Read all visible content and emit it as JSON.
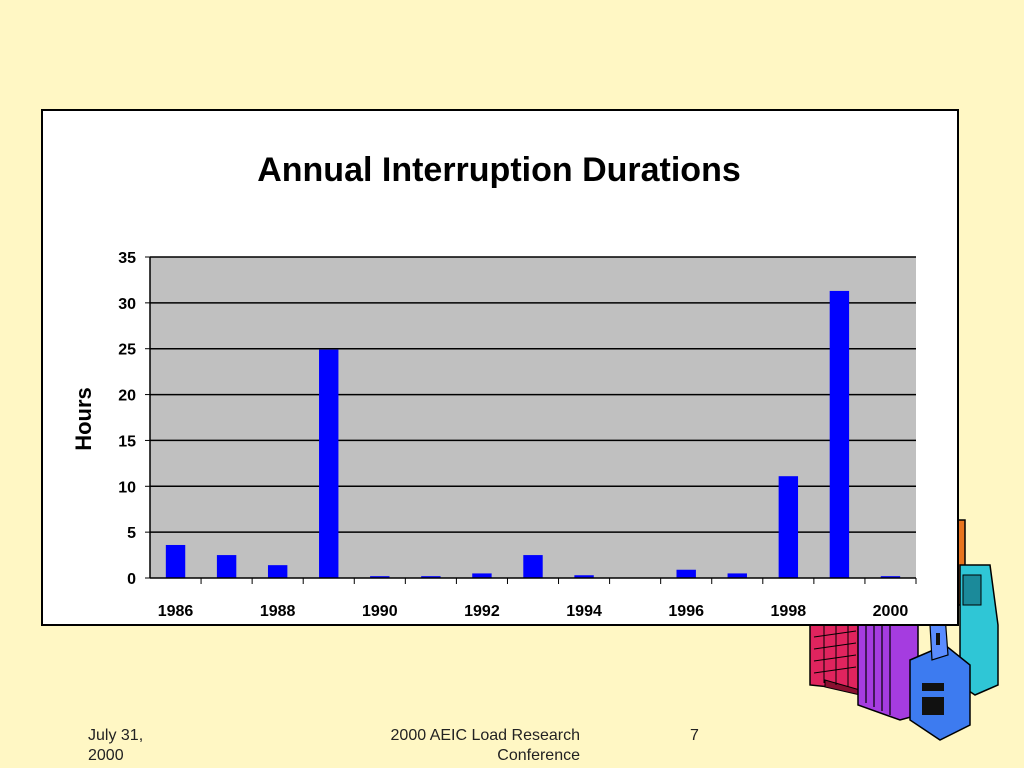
{
  "chart_data": {
    "type": "bar",
    "title": "Annual Interruption Durations",
    "ylabel": "Hours",
    "xlabel": "",
    "ylim": [
      0,
      35
    ],
    "yticks": [
      0,
      5,
      10,
      15,
      20,
      25,
      30,
      35
    ],
    "categories": [
      "1986",
      "1987",
      "1988",
      "1989",
      "1990",
      "1991",
      "1992",
      "1993",
      "1994",
      "1995",
      "1996",
      "1997",
      "1998",
      "1999",
      "2000"
    ],
    "x_tick_labels": [
      "1986",
      "1988",
      "1990",
      "1992",
      "1994",
      "1996",
      "1998",
      "2000"
    ],
    "values": [
      3.6,
      2.5,
      1.4,
      24.9,
      0.2,
      0.2,
      0.5,
      2.5,
      0.3,
      0,
      0.9,
      0.5,
      11.1,
      31.3,
      0.2
    ],
    "grid": true,
    "bar_color": "#0000FF",
    "plot_background": "#C0C0C0"
  },
  "footer": {
    "date": "July 31, 2000",
    "conference": "2000 AEIC Load Research Conference",
    "page": "7"
  },
  "colors": {
    "slide_background": "#FFF7C4"
  }
}
